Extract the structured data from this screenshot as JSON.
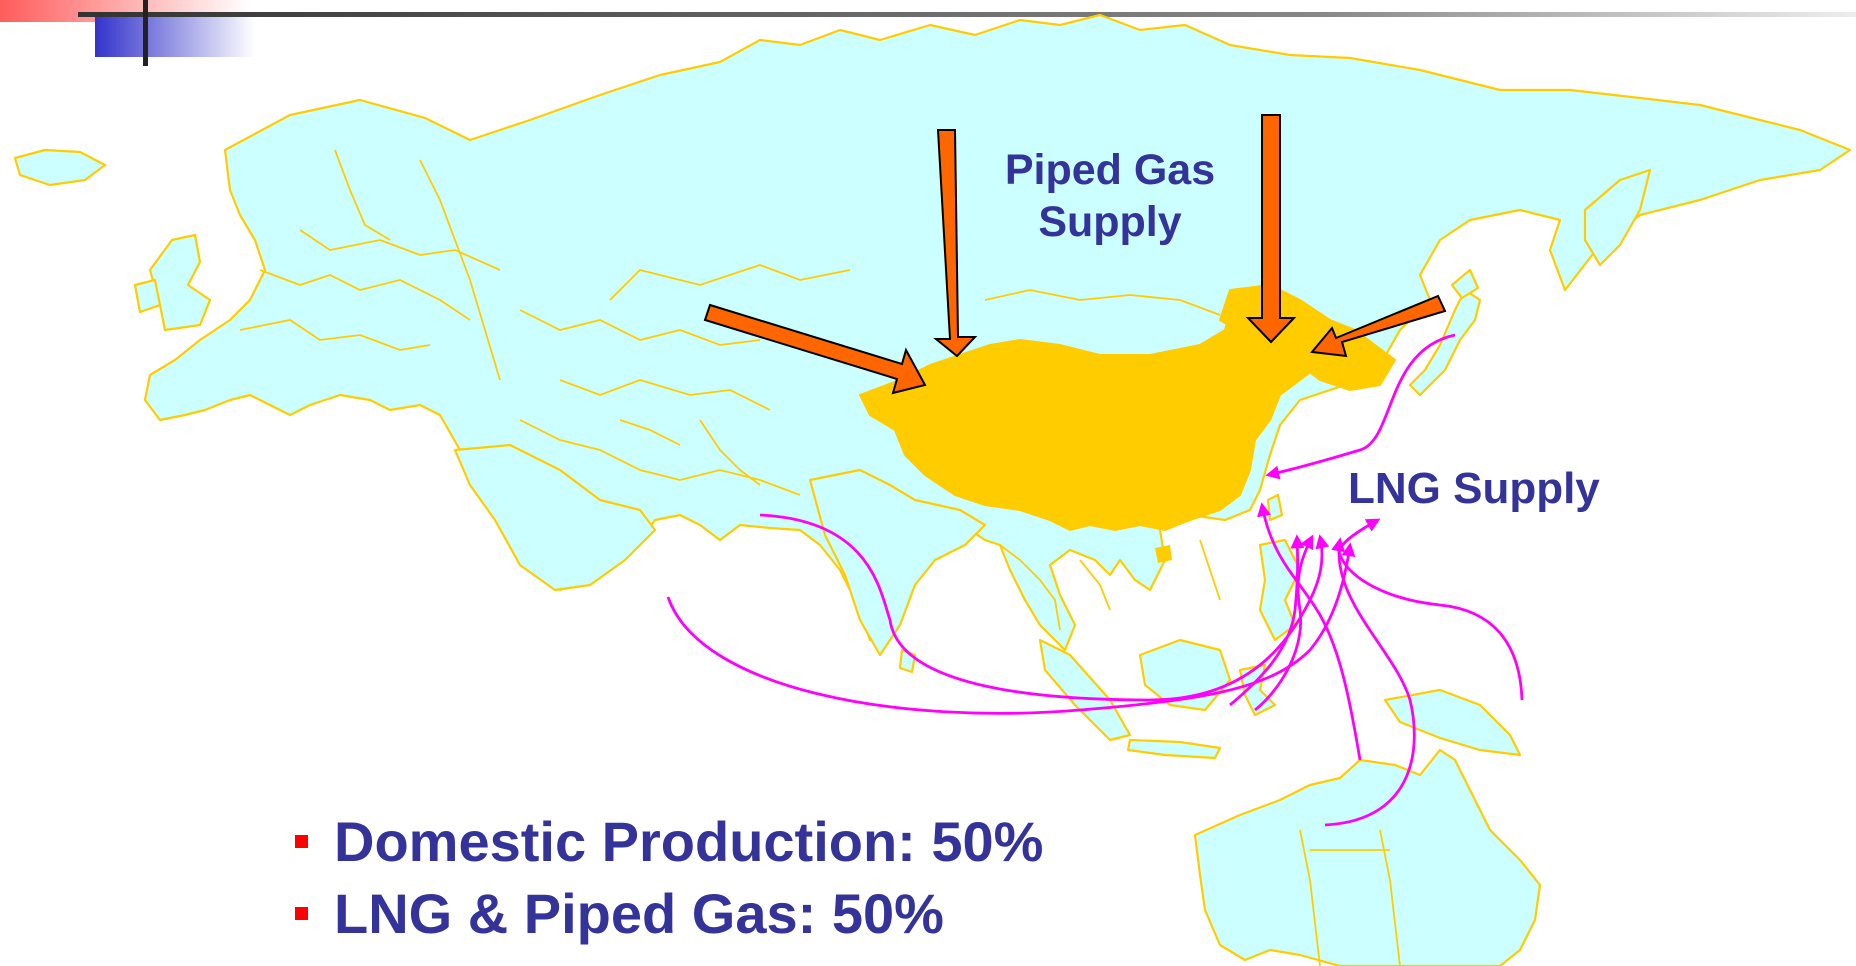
{
  "slide": {
    "labels": {
      "piped_gas": "Piped Gas\nSupply",
      "lng": "LNG Supply"
    },
    "bullets": [
      "Domestic Production: 50%",
      "LNG & Piped Gas: 50%"
    ]
  },
  "colors": {
    "land": "#ccffff",
    "border": "#ffcc00",
    "china": "#ffcc00",
    "pipeline_arrow": "#ff6600",
    "lng_route": "#ff00ff",
    "text": "#333399",
    "bullet": "#ff0000",
    "corner_blue": "#3333cc",
    "corner_red": "#ff3333"
  }
}
